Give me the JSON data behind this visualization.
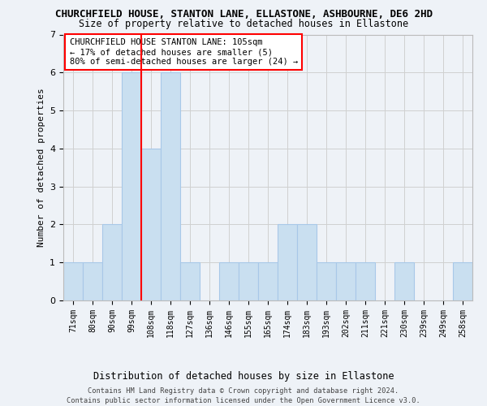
{
  "title_line1": "CHURCHFIELD HOUSE, STANTON LANE, ELLASTONE, ASHBOURNE, DE6 2HD",
  "title_line2": "Size of property relative to detached houses in Ellastone",
  "xlabel": "Distribution of detached houses by size in Ellastone",
  "ylabel": "Number of detached properties",
  "categories": [
    "71sqm",
    "80sqm",
    "90sqm",
    "99sqm",
    "108sqm",
    "118sqm",
    "127sqm",
    "136sqm",
    "146sqm",
    "155sqm",
    "165sqm",
    "174sqm",
    "183sqm",
    "193sqm",
    "202sqm",
    "211sqm",
    "221sqm",
    "230sqm",
    "239sqm",
    "249sqm",
    "258sqm"
  ],
  "values": [
    1,
    1,
    2,
    6,
    4,
    6,
    1,
    0,
    1,
    1,
    1,
    2,
    2,
    1,
    1,
    1,
    0,
    1,
    0,
    0,
    1
  ],
  "bar_color": "#c9dff0",
  "bar_edge_color": "#a8c8e8",
  "grid_color": "#d0d0d0",
  "annotation_box_text": "CHURCHFIELD HOUSE STANTON LANE: 105sqm\n← 17% of detached houses are smaller (5)\n80% of semi-detached houses are larger (24) →",
  "annotation_box_color": "white",
  "annotation_box_edge_color": "red",
  "footer_line1": "Contains HM Land Registry data © Crown copyright and database right 2024.",
  "footer_line2": "Contains public sector information licensed under the Open Government Licence v3.0.",
  "ylim": [
    0,
    7
  ],
  "yticks": [
    0,
    1,
    2,
    3,
    4,
    5,
    6,
    7
  ],
  "bg_color": "#eef2f7",
  "red_line_x": 3.5
}
